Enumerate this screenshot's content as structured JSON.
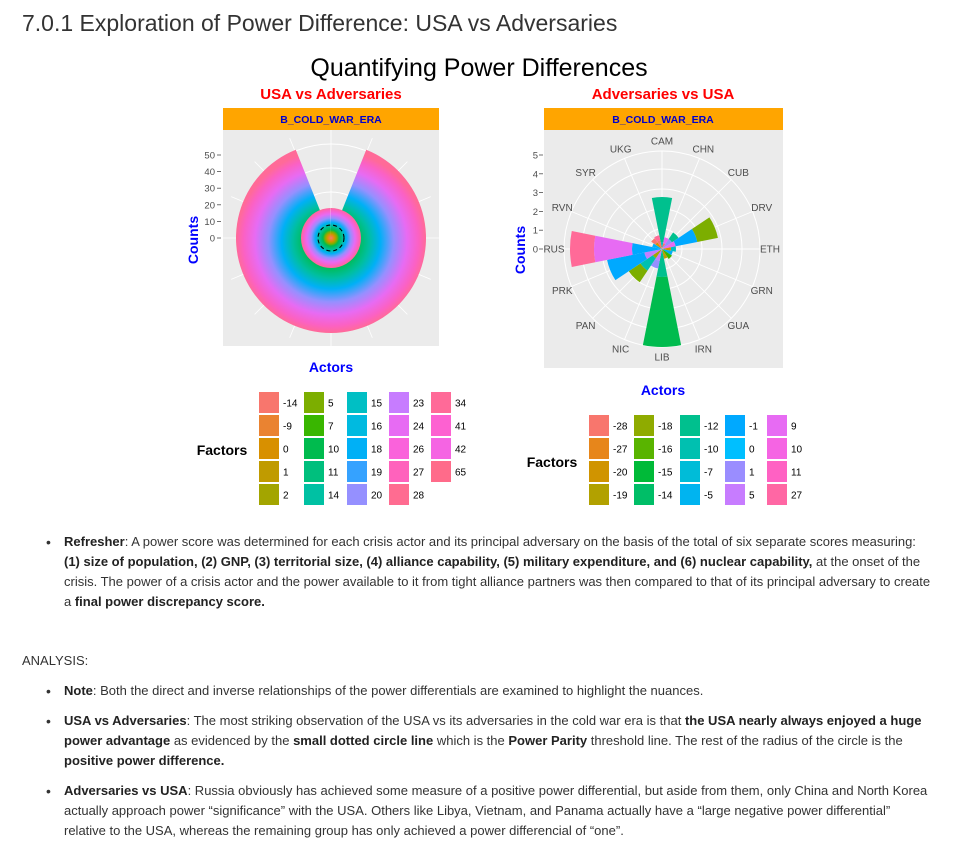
{
  "section_heading": "7.0.1 Exploration of Power Difference: USA vs Adversaries",
  "figure": {
    "main_title": "Quantifying Power Differences",
    "colors": {
      "panel_title": "#ff0000",
      "strip_bg": "#ffa500",
      "strip_text": "#0000cc",
      "axis_title": "#0000ff",
      "panel_bg": "#ebebeb",
      "grid": "#ffffff"
    },
    "left_panel": {
      "title": "USA vs Adversaries",
      "strip_label": "B_COLD_WAR_ERA",
      "y_axis_title": "Counts",
      "x_axis_title": "Actors",
      "y_ticks": [
        "0",
        "10",
        "20",
        "30",
        "40",
        "50"
      ],
      "legend_title": "Factors",
      "legend_items": [
        {
          "label": "-14",
          "color": "#f8766d"
        },
        {
          "label": "-9",
          "color": "#ea8331"
        },
        {
          "label": "0",
          "color": "#d89000"
        },
        {
          "label": "1",
          "color": "#c09b00"
        },
        {
          "label": "2",
          "color": "#a3a500"
        },
        {
          "label": "5",
          "color": "#7cae00"
        },
        {
          "label": "7",
          "color": "#39b600"
        },
        {
          "label": "10",
          "color": "#00bb4e"
        },
        {
          "label": "11",
          "color": "#00bf7d"
        },
        {
          "label": "14",
          "color": "#00c1a3"
        },
        {
          "label": "15",
          "color": "#00bfc4"
        },
        {
          "label": "16",
          "color": "#00bae0"
        },
        {
          "label": "18",
          "color": "#00b0f6"
        },
        {
          "label": "19",
          "color": "#35a2ff"
        },
        {
          "label": "20",
          "color": "#9590ff"
        },
        {
          "label": "23",
          "color": "#c77cff"
        },
        {
          "label": "24",
          "color": "#e76bf3"
        },
        {
          "label": "26",
          "color": "#fa62db"
        },
        {
          "label": "27",
          "color": "#ff62bc"
        },
        {
          "label": "28",
          "color": "#ff6c91"
        },
        {
          "label": "34",
          "color": "#ff6a98"
        },
        {
          "label": "41",
          "color": "#fd61d1"
        },
        {
          "label": "42",
          "color": "#f564e3"
        },
        {
          "label": "65",
          "color": "#ff6b8a"
        }
      ]
    },
    "right_panel": {
      "title": "Adversaries vs USA",
      "strip_label": "B_COLD_WAR_ERA",
      "y_axis_title": "Counts",
      "x_axis_title": "Actors",
      "y_ticks": [
        "0",
        "1",
        "2",
        "3",
        "4",
        "5"
      ],
      "actors": [
        "CAM",
        "CHN",
        "CUB",
        "DRV",
        "ETH",
        "GRN",
        "GUA",
        "IRN",
        "LIB",
        "NIC",
        "PAN",
        "PRK",
        "RUS",
        "RVN",
        "SYR",
        "UKG"
      ],
      "legend_title": "Factors",
      "legend_items": [
        {
          "label": "-28",
          "color": "#f8766d"
        },
        {
          "label": "-27",
          "color": "#e7861b"
        },
        {
          "label": "-20",
          "color": "#d09400"
        },
        {
          "label": "-19",
          "color": "#b2a100"
        },
        {
          "label": "-18",
          "color": "#8fab00"
        },
        {
          "label": "-16",
          "color": "#59b400"
        },
        {
          "label": "-15",
          "color": "#00ba38"
        },
        {
          "label": "-14",
          "color": "#00be67"
        },
        {
          "label": "-12",
          "color": "#00c08e"
        },
        {
          "label": "-10",
          "color": "#00c0b0"
        },
        {
          "label": "-7",
          "color": "#00bcd8"
        },
        {
          "label": "-5",
          "color": "#00b4f0"
        },
        {
          "label": "-1",
          "color": "#00a9ff"
        },
        {
          "label": "0",
          "color": "#00bfff"
        },
        {
          "label": "1",
          "color": "#9a8dff"
        },
        {
          "label": "5",
          "color": "#c77cff"
        },
        {
          "label": "9",
          "color": "#e76bf3"
        },
        {
          "label": "10",
          "color": "#f564e3"
        },
        {
          "label": "11",
          "color": "#ff61c3"
        },
        {
          "label": "27",
          "color": "#ff67a4"
        }
      ]
    }
  },
  "refresher": {
    "label": "Refresher",
    "t1": ": A power score was determined for each crisis actor and its principal adversary on the basis of the total of six separate scores measuring: ",
    "b1": "(1) size of population, (2) GNP, (3) territorial size, (4) alliance capability, (5) military expenditure, and (6) nuclear capability,",
    "t2": " at the onset of the crisis. The power of a crisis actor and the power available to it from tight alliance partners was then compared to that of its principal adversary to create a ",
    "b2": "final power discrepancy score."
  },
  "analysis_label": "ANALYSIS:",
  "note": {
    "label": "Note",
    "t1": ": Both the direct and inverse relationships of the power differentials are examined to highlight the nuances."
  },
  "usa_vs": {
    "label": "USA vs Adversaries",
    "t1": ": The most striking observation of the USA vs its adversaries in the cold war era is that ",
    "b1": "the USA nearly always enjoyed a huge power advantage",
    "t2": " as evidenced by the ",
    "b2": "small dotted circle line",
    "t3": " which is the ",
    "b3": "Power Parity",
    "t4": " threshold line. The rest of the radius of the circle is the ",
    "b4": "positive power difference."
  },
  "adv_vs": {
    "label": "Adversaries vs USA",
    "t1": ": Russia obviously has achieved some measure of a positive power differential, but aside from them, only China and North Korea actually approach power “significance” with the USA. Others like Libya, Vietnam, and Panama actually have a “large negative power differential” relative to the USA, whereas the remaining group has only achieved a power differencial of “one”."
  }
}
